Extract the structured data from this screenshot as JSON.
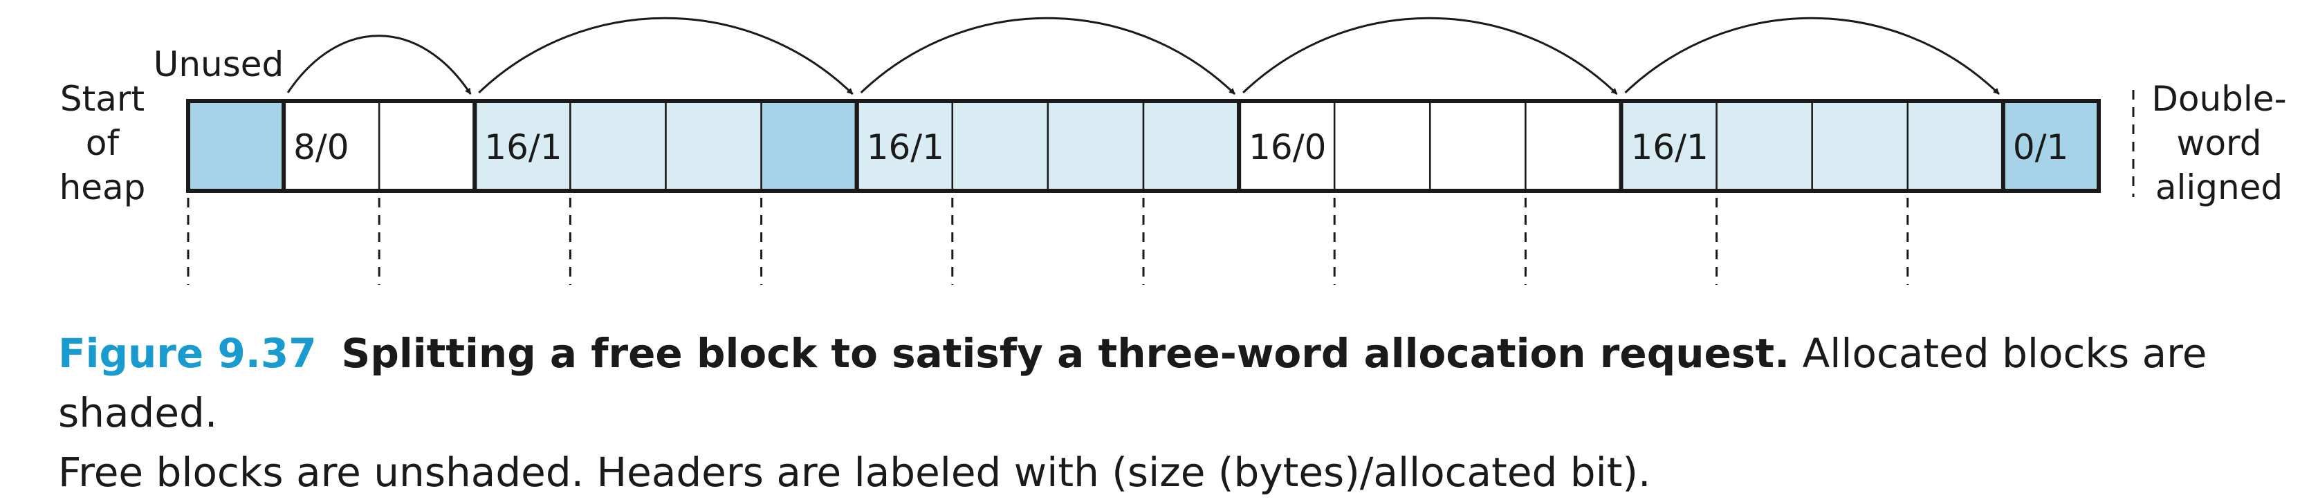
{
  "labels": {
    "unused": "Unused",
    "start_of_heap": [
      "Start",
      "of",
      "heap"
    ],
    "double_word_aligned": [
      "Double-",
      "word",
      "aligned"
    ]
  },
  "words": [
    {
      "label": "",
      "fill": "alloc"
    },
    {
      "label": "8/0",
      "fill": "free"
    },
    {
      "label": "",
      "fill": "free"
    },
    {
      "label": "16/1",
      "fill": "light"
    },
    {
      "label": "",
      "fill": "light"
    },
    {
      "label": "",
      "fill": "light"
    },
    {
      "label": "",
      "fill": "alloc"
    },
    {
      "label": "16/1",
      "fill": "light"
    },
    {
      "label": "",
      "fill": "light"
    },
    {
      "label": "",
      "fill": "light"
    },
    {
      "label": "",
      "fill": "light"
    },
    {
      "label": "16/0",
      "fill": "free"
    },
    {
      "label": "",
      "fill": "free"
    },
    {
      "label": "",
      "fill": "free"
    },
    {
      "label": "",
      "fill": "free"
    },
    {
      "label": "16/1",
      "fill": "light"
    },
    {
      "label": "",
      "fill": "light"
    },
    {
      "label": "",
      "fill": "light"
    },
    {
      "label": "",
      "fill": "light"
    },
    {
      "label": "0/1",
      "fill": "alloc"
    }
  ],
  "block_boundaries": [
    1,
    3,
    7,
    11,
    15,
    19
  ],
  "alignment_marks": [
    0,
    2,
    4,
    6,
    8,
    10,
    12,
    14,
    16,
    18
  ],
  "arrows": [
    [
      1,
      3
    ],
    [
      3,
      7
    ],
    [
      7,
      11
    ],
    [
      11,
      15
    ],
    [
      15,
      19
    ]
  ],
  "colors": {
    "alloc": "#a6d3e8",
    "light": "#d9ecf4",
    "free": "#ffffff",
    "stroke": "#1a1a1a",
    "accent": "#1a9bd0"
  },
  "caption": {
    "figure_number": "Figure 9.37",
    "title": "Splitting a free block to satisfy a three-word allocation request.",
    "text_line1": " Allocated blocks are shaded.",
    "text_line2": "Free blocks are unshaded. Headers are labeled with (size (bytes)/allocated bit)."
  }
}
